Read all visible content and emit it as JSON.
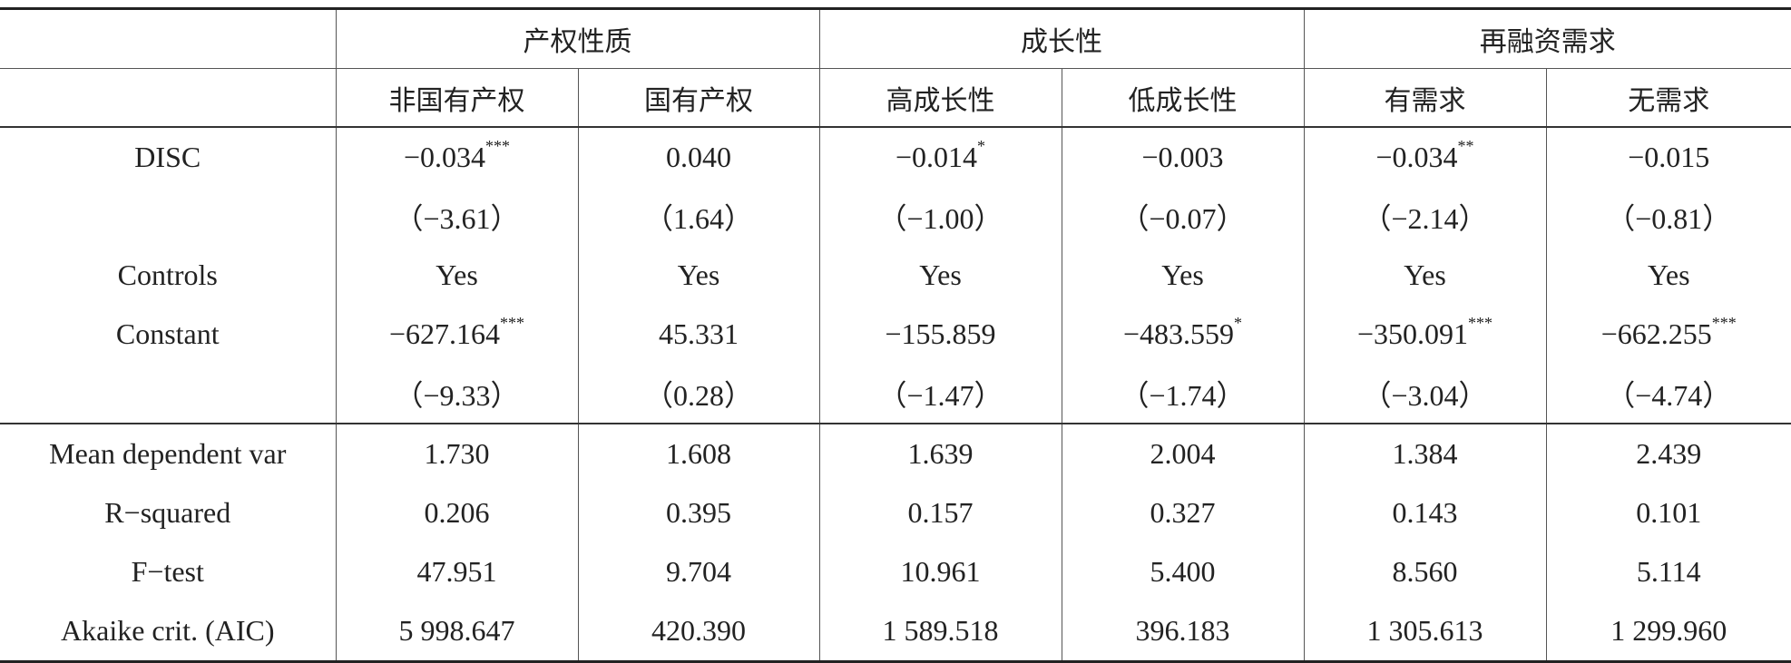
{
  "header": {
    "groups": [
      "产权性质",
      "成长性",
      "再融资需求"
    ],
    "columns": [
      "非国有产权",
      "国有产权",
      "高成长性",
      "低成长性",
      "有需求",
      "无需求"
    ]
  },
  "rows": [
    {
      "label": "DISC",
      "cells": [
        {
          "text": "−0.034",
          "sig": "***"
        },
        {
          "text": "0.040"
        },
        {
          "text": "−0.014",
          "sig": "*"
        },
        {
          "text": "−0.003"
        },
        {
          "text": "−0.034",
          "sig": "**"
        },
        {
          "text": "−0.015"
        }
      ]
    },
    {
      "label": null,
      "cells": [
        {
          "text": "（−3.61）"
        },
        {
          "text": "（1.64）"
        },
        {
          "text": "（−1.00）"
        },
        {
          "text": "（−0.07）"
        },
        {
          "text": "（−2.14）"
        },
        {
          "text": "（−0.81）"
        }
      ]
    },
    {
      "label": "Controls",
      "cells": [
        {
          "text": "Yes"
        },
        {
          "text": "Yes"
        },
        {
          "text": "Yes"
        },
        {
          "text": "Yes"
        },
        {
          "text": "Yes"
        },
        {
          "text": "Yes"
        }
      ]
    },
    {
      "label": "Constant",
      "cells": [
        {
          "text": "−627.164",
          "sig": "***"
        },
        {
          "text": "45.331"
        },
        {
          "text": "−155.859"
        },
        {
          "text": "−483.559",
          "sig": "*"
        },
        {
          "text": "−350.091",
          "sig": "***"
        },
        {
          "text": "−662.255",
          "sig": "***"
        }
      ]
    },
    {
      "label": null,
      "cells": [
        {
          "text": "（−9.33）"
        },
        {
          "text": "（0.28）"
        },
        {
          "text": "（−1.47）"
        },
        {
          "text": "（−1.74）"
        },
        {
          "text": "（−3.04）"
        },
        {
          "text": "（−4.74）"
        }
      ]
    }
  ],
  "stats": [
    {
      "label": "Mean dependent var",
      "cells": [
        {
          "text": "1.730"
        },
        {
          "text": "1.608"
        },
        {
          "text": "1.639"
        },
        {
          "text": "2.004"
        },
        {
          "text": "1.384"
        },
        {
          "text": "2.439"
        }
      ]
    },
    {
      "label": "R−squared",
      "cells": [
        {
          "text": "0.206"
        },
        {
          "text": "0.395"
        },
        {
          "text": "0.157"
        },
        {
          "text": "0.327"
        },
        {
          "text": "0.143"
        },
        {
          "text": "0.101"
        }
      ]
    },
    {
      "label": "F−test",
      "cells": [
        {
          "text": "47.951"
        },
        {
          "text": "9.704"
        },
        {
          "text": "10.961"
        },
        {
          "text": "5.400"
        },
        {
          "text": "8.560"
        },
        {
          "text": "5.114"
        }
      ]
    },
    {
      "label": "Akaike crit. (AIC)",
      "cells": [
        {
          "text": "5 998.647"
        },
        {
          "text": "420.390"
        },
        {
          "text": "1 589.518"
        },
        {
          "text": "396.183"
        },
        {
          "text": "1 305.613"
        },
        {
          "text": "1 299.960"
        }
      ]
    }
  ]
}
